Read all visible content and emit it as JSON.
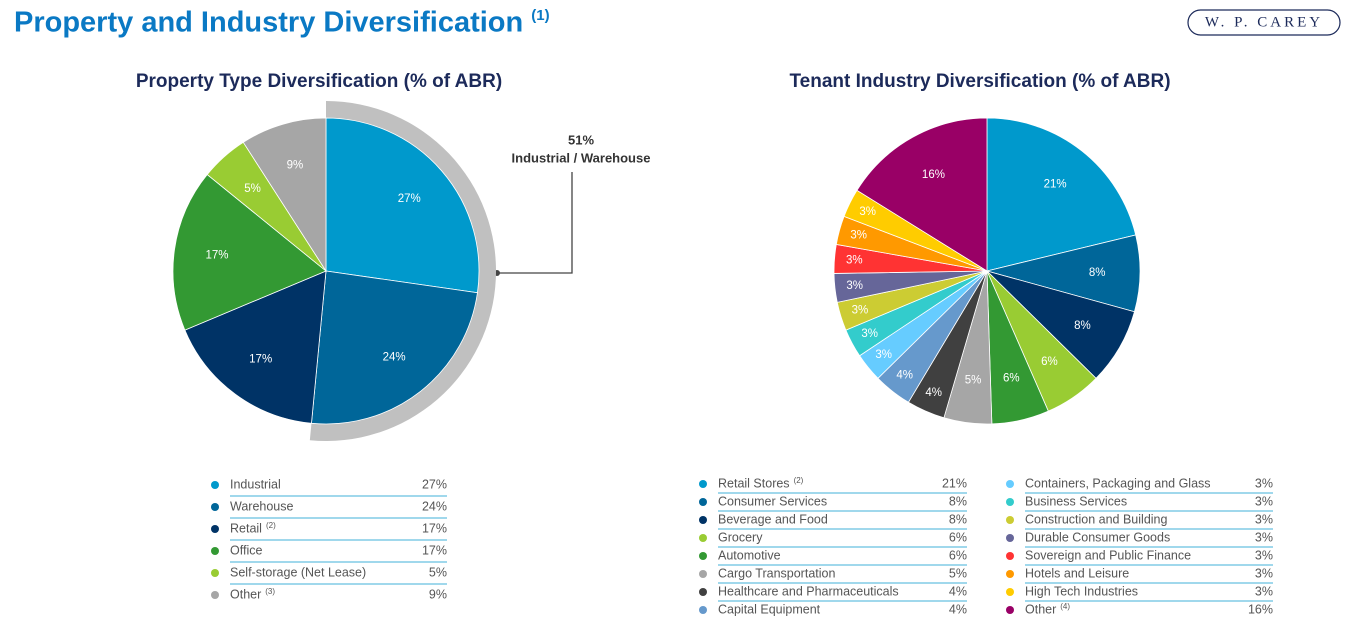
{
  "header": {
    "title": "Property and Industry Diversification",
    "title_note": "(1)",
    "logo": "W. P. CAREY"
  },
  "chart_data": [
    {
      "type": "pie",
      "title": "Property Type Diversification (% of ABR)",
      "categories": [
        "Industrial",
        "Warehouse",
        "Retail",
        "Office",
        "Self-storage (Net Lease)",
        "Other"
      ],
      "category_notes": [
        null,
        null,
        "(2)",
        null,
        null,
        "(3)"
      ],
      "values": [
        27,
        24,
        17,
        17,
        5,
        9
      ],
      "value_labels": [
        "27%",
        "24%",
        "17%",
        "17%",
        "5%",
        "9%"
      ],
      "colors": [
        "#0099cc",
        "#006699",
        "#003366",
        "#339933",
        "#99cc33",
        "#a6a6a6"
      ],
      "annotation": {
        "value": 51,
        "value_label": "51%",
        "text": "Industrial / Warehouse"
      }
    },
    {
      "type": "pie",
      "title": "Tenant Industry Diversification (% of ABR)",
      "categories": [
        "Retail Stores",
        "Consumer Services",
        "Beverage and Food",
        "Grocery",
        "Automotive",
        "Cargo Transportation",
        "Healthcare and Pharmaceuticals",
        "Capital Equipment",
        "Containers, Packaging and Glass",
        "Business Services",
        "Construction and Building",
        "Durable Consumer Goods",
        "Sovereign and Public Finance",
        "Hotels and Leisure",
        "High Tech Industries",
        "Other"
      ],
      "category_notes": [
        "(2)",
        null,
        null,
        null,
        null,
        null,
        null,
        null,
        null,
        null,
        null,
        null,
        null,
        null,
        null,
        "(4)"
      ],
      "values": [
        21,
        8,
        8,
        6,
        6,
        5,
        4,
        4,
        3,
        3,
        3,
        3,
        3,
        3,
        3,
        16
      ],
      "value_labels": [
        "21%",
        "8%",
        "8%",
        "6%",
        "6%",
        "5%",
        "4%",
        "4%",
        "3%",
        "3%",
        "3%",
        "3%",
        "3%",
        "3%",
        "3%",
        "16%"
      ],
      "colors": [
        "#0099cc",
        "#006699",
        "#003366",
        "#99cc33",
        "#339933",
        "#a6a6a6",
        "#404040",
        "#6699cc",
        "#66ccff",
        "#33cccc",
        "#cccc33",
        "#666699",
        "#ff3333",
        "#ff9900",
        "#ffcc00",
        "#990066"
      ]
    }
  ]
}
